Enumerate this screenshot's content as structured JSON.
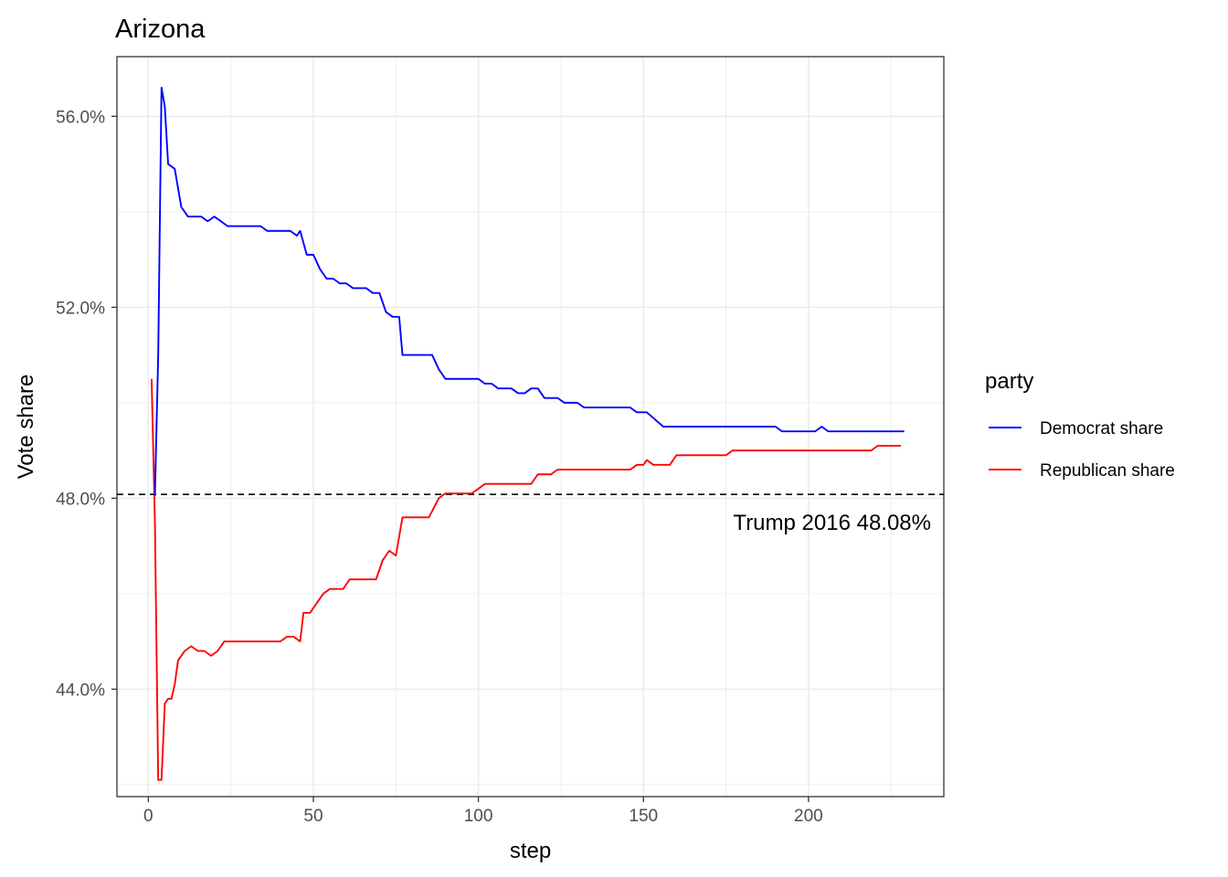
{
  "chart_data": {
    "type": "line",
    "title": "Arizona",
    "xlabel": "step",
    "ylabel": "Vote share",
    "xlim": [
      -9.5,
      241
    ],
    "ylim": [
      41.75,
      57.25
    ],
    "x_ticks": [
      0,
      50,
      100,
      150,
      200
    ],
    "x_tick_labels": [
      "0",
      "50",
      "100",
      "150",
      "200"
    ],
    "y_ticks": [
      44,
      48,
      52,
      56
    ],
    "y_tick_labels": [
      "44.0%",
      "48.0%",
      "52.0%",
      "56.0%"
    ],
    "grid": true,
    "legend": {
      "title": "party",
      "position": "right"
    },
    "series": [
      {
        "name": "Democrat share",
        "color": "#0000ff",
        "points": [
          [
            2,
            48.05
          ],
          [
            3,
            51.0
          ],
          [
            4,
            56.6
          ],
          [
            5,
            56.2
          ],
          [
            6,
            55.0
          ],
          [
            8,
            54.9
          ],
          [
            10,
            54.1
          ],
          [
            12,
            53.9
          ],
          [
            16,
            53.9
          ],
          [
            18,
            53.8
          ],
          [
            20,
            53.9
          ],
          [
            22,
            53.8
          ],
          [
            24,
            53.7
          ],
          [
            34,
            53.7
          ],
          [
            36,
            53.6
          ],
          [
            43,
            53.6
          ],
          [
            45,
            53.5
          ],
          [
            46,
            53.6
          ],
          [
            48,
            53.1
          ],
          [
            50,
            53.1
          ],
          [
            52,
            52.8
          ],
          [
            54,
            52.6
          ],
          [
            56,
            52.6
          ],
          [
            58,
            52.5
          ],
          [
            60,
            52.5
          ],
          [
            62,
            52.4
          ],
          [
            66,
            52.4
          ],
          [
            68,
            52.3
          ],
          [
            70,
            52.3
          ],
          [
            72,
            51.9
          ],
          [
            74,
            51.8
          ],
          [
            76,
            51.8
          ],
          [
            77,
            51.0
          ],
          [
            86,
            51.0
          ],
          [
            88,
            50.7
          ],
          [
            90,
            50.5
          ],
          [
            100,
            50.5
          ],
          [
            102,
            50.4
          ],
          [
            104,
            50.4
          ],
          [
            106,
            50.3
          ],
          [
            110,
            50.3
          ],
          [
            112,
            50.2
          ],
          [
            114,
            50.2
          ],
          [
            116,
            50.3
          ],
          [
            118,
            50.3
          ],
          [
            120,
            50.1
          ],
          [
            124,
            50.1
          ],
          [
            126,
            50.0
          ],
          [
            130,
            50.0
          ],
          [
            132,
            49.9
          ],
          [
            146,
            49.9
          ],
          [
            148,
            49.8
          ],
          [
            151,
            49.8
          ],
          [
            156,
            49.5
          ],
          [
            190,
            49.5
          ],
          [
            192,
            49.4
          ],
          [
            202,
            49.4
          ],
          [
            204,
            49.5
          ],
          [
            206,
            49.4
          ],
          [
            229,
            49.4
          ]
        ]
      },
      {
        "name": "Republican share",
        "color": "#ff0000",
        "points": [
          [
            1,
            50.5
          ],
          [
            2,
            47.5
          ],
          [
            3,
            42.1
          ],
          [
            4,
            42.1
          ],
          [
            5,
            43.7
          ],
          [
            6,
            43.8
          ],
          [
            7,
            43.8
          ],
          [
            8,
            44.1
          ],
          [
            9,
            44.6
          ],
          [
            11,
            44.8
          ],
          [
            13,
            44.9
          ],
          [
            15,
            44.8
          ],
          [
            17,
            44.8
          ],
          [
            19,
            44.7
          ],
          [
            21,
            44.8
          ],
          [
            23,
            45.0
          ],
          [
            40,
            45.0
          ],
          [
            42,
            45.1
          ],
          [
            44,
            45.1
          ],
          [
            46,
            45.0
          ],
          [
            47,
            45.6
          ],
          [
            49,
            45.6
          ],
          [
            51,
            45.8
          ],
          [
            53,
            46.0
          ],
          [
            55,
            46.1
          ],
          [
            59,
            46.1
          ],
          [
            61,
            46.3
          ],
          [
            69,
            46.3
          ],
          [
            71,
            46.7
          ],
          [
            73,
            46.9
          ],
          [
            75,
            46.8
          ],
          [
            77,
            47.6
          ],
          [
            85,
            47.6
          ],
          [
            88,
            48.0
          ],
          [
            90,
            48.1
          ],
          [
            98,
            48.1
          ],
          [
            100,
            48.2
          ],
          [
            102,
            48.3
          ],
          [
            116,
            48.3
          ],
          [
            118,
            48.5
          ],
          [
            122,
            48.5
          ],
          [
            124,
            48.6
          ],
          [
            146,
            48.6
          ],
          [
            148,
            48.7
          ],
          [
            150,
            48.7
          ],
          [
            151,
            48.8
          ],
          [
            153,
            48.7
          ],
          [
            158,
            48.7
          ],
          [
            160,
            48.9
          ],
          [
            175,
            48.9
          ],
          [
            177,
            49.0
          ],
          [
            219,
            49.0
          ],
          [
            221,
            49.1
          ],
          [
            228,
            49.1
          ]
        ]
      }
    ],
    "reference_line": {
      "y": 48.08,
      "style": "dashed",
      "color": "#000000",
      "label": "Trump 2016 48.08%"
    }
  }
}
